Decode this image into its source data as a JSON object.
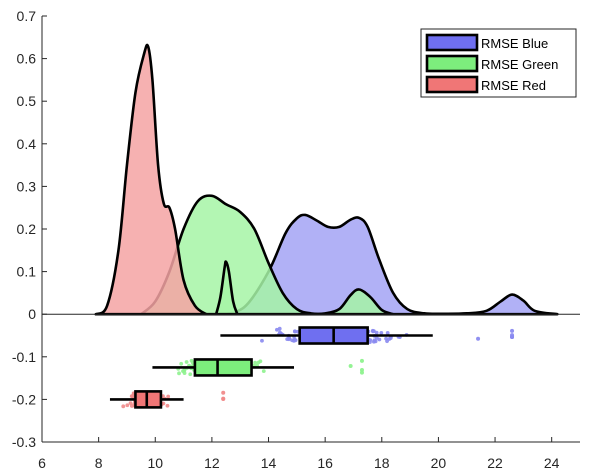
{
  "chart_data": {
    "type": "raincloud",
    "title": "",
    "xlabel": "",
    "ylabel": "",
    "xlim": [
      6,
      25
    ],
    "ylim": [
      -0.3,
      0.7
    ],
    "xticks": [
      6,
      8,
      10,
      12,
      14,
      16,
      18,
      20,
      22,
      24
    ],
    "yticks": [
      -0.3,
      -0.2,
      -0.1,
      0,
      0.1,
      0.2,
      0.3,
      0.4,
      0.5,
      0.6,
      0.7
    ],
    "xtick_labels": [
      "6",
      "8",
      "10",
      "12",
      "14",
      "16",
      "18",
      "20",
      "22",
      "24"
    ],
    "ytick_labels": [
      "-0.3",
      "-0.2",
      "-0.1",
      "0",
      "0.1",
      "0.2",
      "0.3",
      "0.4",
      "0.5",
      "0.6",
      "0.7"
    ],
    "legend": {
      "position": "top-right"
    },
    "series": [
      {
        "name": "RMSE Blue",
        "fill": "#a3a3f5",
        "box_fill": "#6f6ff0",
        "dot_color": "#8a8af0",
        "density": [
          [
            12.5,
            0.0
          ],
          [
            13.2,
            0.02
          ],
          [
            14.0,
            0.1
          ],
          [
            14.6,
            0.19
          ],
          [
            15.0,
            0.225
          ],
          [
            15.3,
            0.233
          ],
          [
            15.7,
            0.22
          ],
          [
            16.1,
            0.205
          ],
          [
            16.5,
            0.205
          ],
          [
            16.9,
            0.222
          ],
          [
            17.2,
            0.226
          ],
          [
            17.5,
            0.205
          ],
          [
            17.9,
            0.13
          ],
          [
            18.4,
            0.05
          ],
          [
            18.9,
            0.012
          ],
          [
            19.5,
            0.002
          ],
          [
            20.2,
            0.001
          ],
          [
            21.0,
            0.002
          ],
          [
            21.7,
            0.008
          ],
          [
            22.2,
            0.03
          ],
          [
            22.6,
            0.046
          ],
          [
            23.0,
            0.032
          ],
          [
            23.4,
            0.008
          ],
          [
            24.2,
            0.0
          ]
        ],
        "box": {
          "y": -0.05,
          "whisker_low": 12.3,
          "q1": 15.1,
          "median": 16.3,
          "q3": 17.5,
          "whisker_high": 19.8
        },
        "scatter": {
          "y": -0.05,
          "min": 12.5,
          "max": 19.7,
          "center": 16.3,
          "spread": 1.7,
          "outliers": [
            21.4,
            22.6,
            22.6,
            22.6,
            22.6,
            22.6
          ]
        }
      },
      {
        "name": "RMSE Green",
        "fill": "#a6f5a6",
        "box_fill": "#7ded7d",
        "dot_color": "#8ef28e",
        "density": [
          [
            9.5,
            0.0
          ],
          [
            10.0,
            0.03
          ],
          [
            10.5,
            0.1
          ],
          [
            11.0,
            0.2
          ],
          [
            11.5,
            0.265
          ],
          [
            12.0,
            0.278
          ],
          [
            12.5,
            0.258
          ],
          [
            13.0,
            0.24
          ],
          [
            13.5,
            0.2
          ],
          [
            14.0,
            0.12
          ],
          [
            14.5,
            0.05
          ],
          [
            15.0,
            0.012
          ],
          [
            15.5,
            0.002
          ],
          [
            16.0,
            0.002
          ],
          [
            16.5,
            0.012
          ],
          [
            16.9,
            0.045
          ],
          [
            17.2,
            0.058
          ],
          [
            17.6,
            0.04
          ],
          [
            18.0,
            0.01
          ],
          [
            18.4,
            0.0
          ]
        ],
        "spike": [
          [
            12.15,
            0.0
          ],
          [
            12.3,
            0.04
          ],
          [
            12.45,
            0.11
          ],
          [
            12.5,
            0.123
          ],
          [
            12.6,
            0.1
          ],
          [
            12.75,
            0.03
          ],
          [
            12.9,
            0.0
          ]
        ],
        "box": {
          "y": -0.125,
          "whisker_low": 9.9,
          "q1": 11.4,
          "median": 12.2,
          "q3": 13.4,
          "whisker_high": 14.9
        },
        "scatter": {
          "y": -0.125,
          "min": 10.0,
          "max": 14.8,
          "center": 12.3,
          "spread": 1.2,
          "outliers": [
            16.9,
            17.3,
            17.3,
            17.3
          ]
        }
      },
      {
        "name": "RMSE Red",
        "fill": "#f5a3a3",
        "box_fill": "#f07676",
        "dot_color": "#f08a8a",
        "density": [
          [
            7.9,
            0.0
          ],
          [
            8.3,
            0.02
          ],
          [
            8.7,
            0.15
          ],
          [
            9.0,
            0.35
          ],
          [
            9.3,
            0.52
          ],
          [
            9.6,
            0.61
          ],
          [
            9.75,
            0.628
          ],
          [
            9.9,
            0.55
          ],
          [
            10.1,
            0.35
          ],
          [
            10.3,
            0.26
          ],
          [
            10.5,
            0.25
          ],
          [
            10.7,
            0.2
          ],
          [
            11.0,
            0.08
          ],
          [
            11.4,
            0.02
          ],
          [
            11.8,
            0.0
          ]
        ],
        "box": {
          "y": -0.2,
          "whisker_low": 8.4,
          "q1": 9.3,
          "median": 9.7,
          "q3": 10.2,
          "whisker_high": 11.0
        },
        "scatter": {
          "y": -0.2,
          "min": 8.4,
          "max": 11.0,
          "center": 9.7,
          "spread": 0.5,
          "outliers": [
            12.4,
            12.4,
            12.4
          ]
        }
      }
    ]
  }
}
